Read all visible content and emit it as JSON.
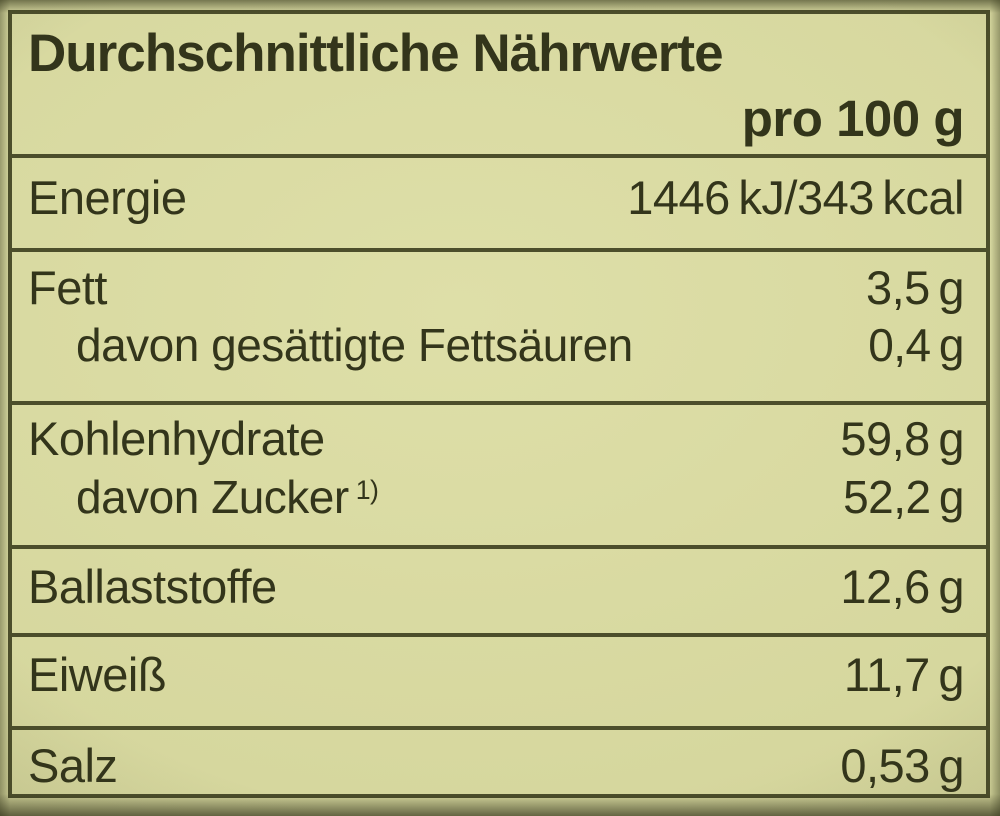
{
  "label": {
    "title": "Durchschnittliche Nährwerte",
    "per": "pro 100 g",
    "rows": [
      {
        "label": "Energie",
        "value": "1446 kJ/343 kcal"
      },
      {
        "label": "Fett",
        "value": "3,5 g",
        "sub_label": "davon gesättigte Fettsäuren",
        "sub_value": "0,4 g"
      },
      {
        "label": "Kohlenhydrate",
        "value": "59,8 g",
        "sub_label": "davon Zucker",
        "sub_note": "1)",
        "sub_value": "52,2 g"
      },
      {
        "label": "Ballaststoffe",
        "value": "12,6 g"
      },
      {
        "label": "Eiweiß",
        "value": "11,7 g"
      },
      {
        "label": "Salz",
        "value": "0,53 g"
      }
    ]
  },
  "colors": {
    "background": "#d6d79e",
    "text": "#33351b",
    "line": "#4c4e2b"
  }
}
